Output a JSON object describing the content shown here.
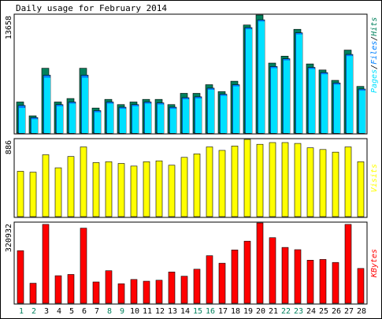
{
  "title": "Daily usage for February 2014",
  "colors": {
    "background": "#ffffff",
    "panel_border": "#000000",
    "hits": "#00805c",
    "files": "#0080ff",
    "pages": "#00e0ff",
    "visits": "#ffff00",
    "kbytes": "#ff0000",
    "weekday_label": "#000000",
    "weekend_label": "#00805c"
  },
  "chart_data": [
    {
      "type": "bar",
      "name": "hits-files-pages",
      "categories": [
        "1",
        "2",
        "3",
        "4",
        "5",
        "6",
        "7",
        "8",
        "9",
        "10",
        "11",
        "12",
        "13",
        "14",
        "15",
        "16",
        "17",
        "18",
        "19",
        "20",
        "21",
        "22",
        "23",
        "24",
        "25",
        "26",
        "27",
        "28"
      ],
      "weekend_days": [
        1,
        2,
        8,
        9,
        15,
        16,
        22,
        23
      ],
      "ymax_label": "13658",
      "ylim": [
        0,
        13658
      ],
      "legend": [
        {
          "label": "Pages",
          "color": "#00e0ff"
        },
        {
          "label": "Files",
          "color": "#0080ff"
        },
        {
          "label": "Hits",
          "color": "#00805c"
        }
      ],
      "legend_separator": "/",
      "series": [
        {
          "name": "Hits",
          "values": [
            3600,
            2000,
            7500,
            3600,
            4000,
            7500,
            2900,
            3900,
            3300,
            3600,
            3900,
            3900,
            3300,
            4600,
            4600,
            5600,
            4800,
            6000,
            12500,
            13658,
            8100,
            8900,
            12000,
            8000,
            7300,
            6100,
            9600,
            5400
          ]
        },
        {
          "name": "Files",
          "values": [
            3200,
            1800,
            6700,
            3300,
            3600,
            6700,
            2600,
            3600,
            3000,
            3300,
            3600,
            3500,
            3000,
            4100,
            4200,
            5200,
            4500,
            5600,
            12200,
            13100,
            7700,
            8600,
            11600,
            7600,
            7000,
            5800,
            9100,
            5100
          ]
        },
        {
          "name": "Pages",
          "values": [
            3000,
            1700,
            6500,
            3200,
            3500,
            6500,
            2500,
            3500,
            2900,
            3200,
            3500,
            3400,
            2900,
            4000,
            4100,
            5100,
            4400,
            5500,
            12100,
            13000,
            7600,
            8500,
            11500,
            7500,
            6900,
            5700,
            9000,
            5000
          ]
        }
      ]
    },
    {
      "type": "bar",
      "name": "visits",
      "categories": [
        "1",
        "2",
        "3",
        "4",
        "5",
        "6",
        "7",
        "8",
        "9",
        "10",
        "11",
        "12",
        "13",
        "14",
        "15",
        "16",
        "17",
        "18",
        "19",
        "20",
        "21",
        "22",
        "23",
        "24",
        "25",
        "26",
        "27",
        "28"
      ],
      "ymax_label": "886",
      "ylim": [
        0,
        886
      ],
      "legend": [
        {
          "label": "Visits",
          "color": "#ffff00"
        }
      ],
      "series": [
        {
          "name": "Visits",
          "values": [
            520,
            510,
            710,
            560,
            690,
            800,
            620,
            630,
            610,
            580,
            630,
            640,
            590,
            680,
            720,
            800,
            760,
            810,
            886,
            830,
            850,
            850,
            840,
            790,
            770,
            740,
            800,
            630
          ]
        }
      ]
    },
    {
      "type": "bar",
      "name": "kbytes",
      "categories": [
        "1",
        "2",
        "3",
        "4",
        "5",
        "6",
        "7",
        "8",
        "9",
        "10",
        "11",
        "12",
        "13",
        "14",
        "15",
        "16",
        "17",
        "18",
        "19",
        "20",
        "21",
        "22",
        "23",
        "24",
        "25",
        "26",
        "27",
        "28"
      ],
      "ymax_label": "320932",
      "ylim": [
        0,
        320932
      ],
      "legend": [
        {
          "label": "KBytes",
          "color": "#ff0000"
        }
      ],
      "series": [
        {
          "name": "KBytes",
          "values": [
            210000,
            80000,
            315000,
            110000,
            115000,
            300000,
            85000,
            130000,
            78000,
            95000,
            88000,
            92000,
            125000,
            108000,
            136000,
            190000,
            160000,
            213000,
            248000,
            320932,
            262000,
            223000,
            214000,
            172000,
            175000,
            163000,
            315000,
            139000
          ]
        }
      ]
    }
  ]
}
